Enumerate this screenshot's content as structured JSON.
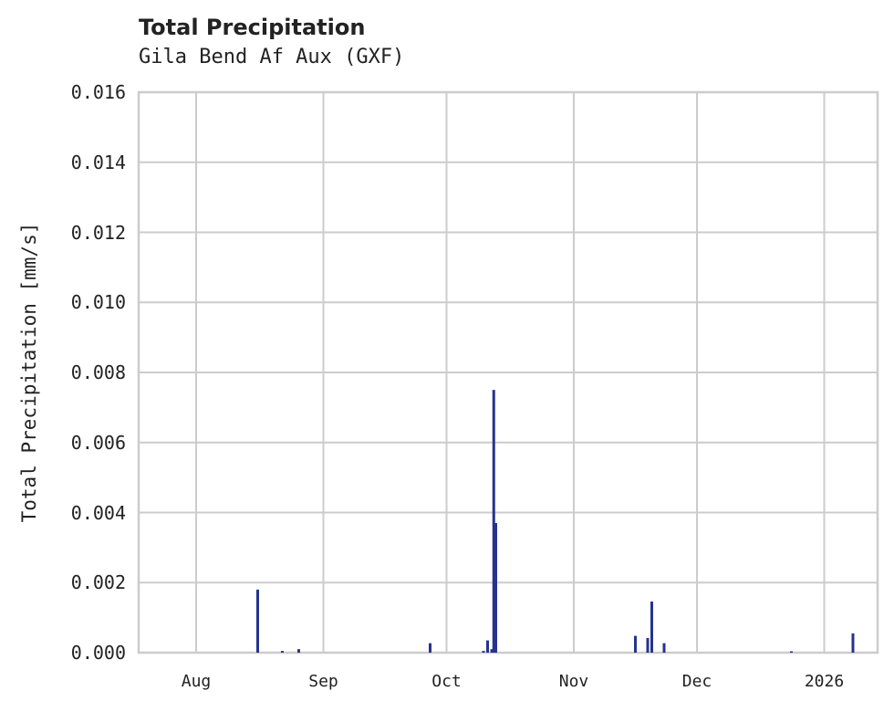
{
  "chart_data": {
    "type": "bar",
    "title": "Total Precipitation",
    "subtitle": "Gila Bend Af Aux (GXF)",
    "xlabel": "",
    "ylabel": "Total Precipitation [mm/s]",
    "ylim": [
      0,
      0.016
    ],
    "yticks": [
      "0.000",
      "0.002",
      "0.004",
      "0.006",
      "0.008",
      "0.010",
      "0.012",
      "0.014",
      "0.016"
    ],
    "xticks": [
      "Aug",
      "Sep",
      "Oct",
      "Nov",
      "Dec",
      "2026"
    ],
    "grid": true,
    "color": "#25338f",
    "series": [
      {
        "name": "Total Precipitation",
        "points": [
          {
            "x": "2025-08-16",
            "y": 0.0018
          },
          {
            "x": "2025-08-22",
            "y": 5e-05
          },
          {
            "x": "2025-08-26",
            "y": 0.0001
          },
          {
            "x": "2025-09-27",
            "y": 0.00027
          },
          {
            "x": "2025-10-10",
            "y": 5e-05
          },
          {
            "x": "2025-10-11",
            "y": 0.00035
          },
          {
            "x": "2025-10-12",
            "y": 0.0001
          },
          {
            "x": "2025-10-12T12",
            "y": 0.0075
          },
          {
            "x": "2025-10-13",
            "y": 0.0037
          },
          {
            "x": "2025-11-16",
            "y": 0.00048
          },
          {
            "x": "2025-11-19",
            "y": 0.00042
          },
          {
            "x": "2025-11-20",
            "y": 0.00146
          },
          {
            "x": "2025-11-23",
            "y": 0.00027
          },
          {
            "x": "2025-12-24",
            "y": 4e-05
          },
          {
            "x": "2026-01-08",
            "y": 0.00055
          }
        ]
      }
    ]
  }
}
